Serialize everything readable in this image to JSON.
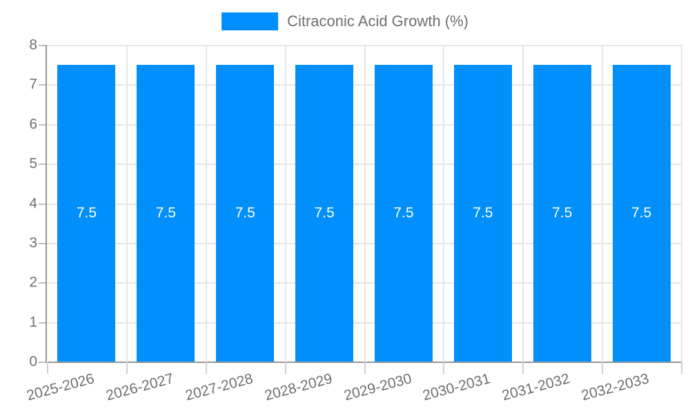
{
  "legend": {
    "label": "Citraconic Acid Growth (%)",
    "swatch_color": "#008FFB"
  },
  "chart_data": {
    "type": "bar",
    "title": "Citraconic Acid Growth (%)",
    "categories": [
      "2025-2026",
      "2026-2027",
      "2027-2028",
      "2028-2029",
      "2029-2030",
      "2030-2031",
      "2031-2032",
      "2032-2033"
    ],
    "values": [
      7.5,
      7.5,
      7.5,
      7.5,
      7.5,
      7.5,
      7.5,
      7.5
    ],
    "data_labels": [
      "7.5",
      "7.5",
      "7.5",
      "7.5",
      "7.5",
      "7.5",
      "7.5",
      "7.5"
    ],
    "xlabel": "",
    "ylabel": "",
    "ylim": [
      0,
      8
    ],
    "yticks": [
      0,
      1,
      2,
      3,
      4,
      5,
      6,
      7,
      8
    ],
    "grid": true,
    "legend_position": "top",
    "xtick_rotation_deg": -15,
    "colors": {
      "bar": "#008FFB",
      "grid": "#e6e6e6",
      "axis": "#969696",
      "tick_label": "#6e6e6e",
      "data_label": "#ffffff"
    }
  }
}
